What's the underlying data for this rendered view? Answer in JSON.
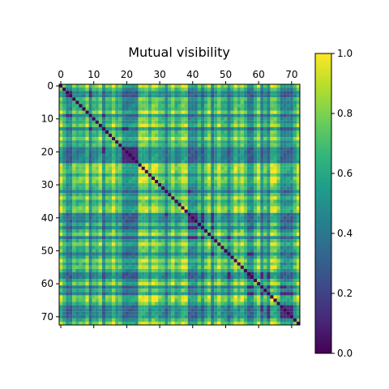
{
  "chart_data": {
    "type": "heatmap",
    "title": "Mutual visibility",
    "size": 73,
    "x_ticks": [
      0,
      10,
      20,
      30,
      40,
      50,
      60,
      70
    ],
    "y_ticks": [
      0,
      10,
      20,
      30,
      40,
      50,
      60,
      70
    ],
    "x_range": [
      -0.5,
      72.5
    ],
    "y_range": [
      -0.5,
      72.5
    ],
    "x_tick_position": "top",
    "colormap": "viridis",
    "value_range": [
      0.0,
      1.0
    ],
    "colorbar_ticks": [
      "0.0",
      "0.2",
      "0.4",
      "0.6",
      "0.8",
      "1.0"
    ],
    "diagonal_value": 0.0,
    "grid": false,
    "legend": "colorbar-right",
    "node_values": [
      0.98,
      0.62,
      0.3,
      0.28,
      0.72,
      0.55,
      0.66,
      0.6,
      0.96,
      0.3,
      0.68,
      0.64,
      0.95,
      0.28,
      0.7,
      0.66,
      0.98,
      0.6,
      0.7,
      0.3,
      0.26,
      0.32,
      0.3,
      0.28,
      0.97,
      0.96,
      0.99,
      0.62,
      0.98,
      0.94,
      0.7,
      0.66,
      0.3,
      0.64,
      0.96,
      0.6,
      0.72,
      0.98,
      0.95,
      0.28,
      0.32,
      0.3,
      0.66,
      0.3,
      0.7,
      0.96,
      0.28,
      0.68,
      0.97,
      0.62,
      0.66,
      0.3,
      0.6,
      0.98,
      0.7,
      0.95,
      0.66,
      0.3,
      0.28,
      0.64,
      0.96,
      0.3,
      0.62,
      0.32,
      0.99,
      0.97,
      0.7,
      0.3,
      0.28,
      0.32,
      0.3,
      0.62,
      0.97
    ],
    "note": "73x73 symmetric matrix of pairwise mutual visibility values between 0.0 and 1.0; cells shown as colored squares."
  }
}
